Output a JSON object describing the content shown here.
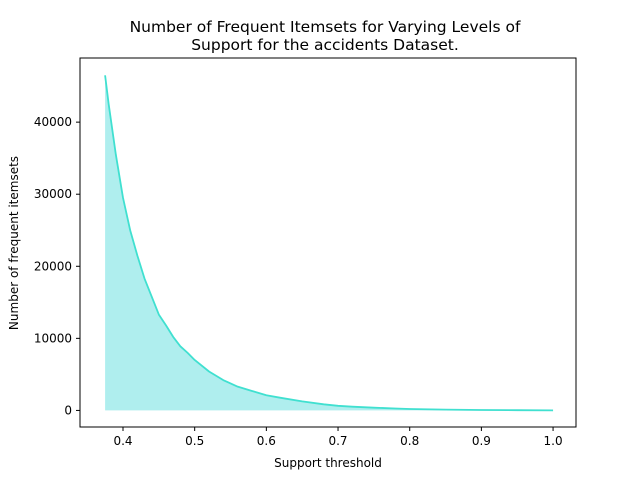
{
  "chart_data": {
    "type": "area",
    "title_lines": [
      "Number of Frequent Itemsets for Varying Levels of",
      "Support for the accidents Dataset."
    ],
    "xlabel": "Support threshold",
    "ylabel": "Number of frequent itemsets",
    "xlim": [
      0.34,
      1.032
    ],
    "ylim": [
      -2300,
      48900
    ],
    "x_ticks": [
      0.4,
      0.5,
      0.6,
      0.7,
      0.8,
      0.9,
      1.0
    ],
    "x_tick_labels": [
      "0.4",
      "0.5",
      "0.6",
      "0.7",
      "0.8",
      "0.9",
      "1.0"
    ],
    "y_ticks": [
      0,
      10000,
      20000,
      30000,
      40000
    ],
    "y_tick_labels": [
      "0",
      "10000",
      "20000",
      "30000",
      "40000"
    ],
    "grid": false,
    "line_color": "#40e0d0",
    "fill_color": "#afeeee",
    "series": [
      {
        "x": [
          0.375,
          0.38,
          0.39,
          0.4,
          0.41,
          0.42,
          0.43,
          0.44,
          0.45,
          0.46,
          0.47,
          0.48,
          0.49,
          0.5,
          0.52,
          0.54,
          0.56,
          0.58,
          0.6,
          0.62,
          0.65,
          0.68,
          0.7,
          0.72,
          0.75,
          0.78,
          0.8,
          0.85,
          0.9,
          0.95,
          1.0
        ],
        "y": [
          46500,
          42500,
          35500,
          29500,
          25000,
          21500,
          18300,
          15800,
          13300,
          11800,
          10200,
          8900,
          8000,
          7000,
          5400,
          4200,
          3300,
          2700,
          2100,
          1750,
          1250,
          850,
          640,
          520,
          380,
          270,
          200,
          110,
          60,
          30,
          10
        ]
      }
    ]
  }
}
